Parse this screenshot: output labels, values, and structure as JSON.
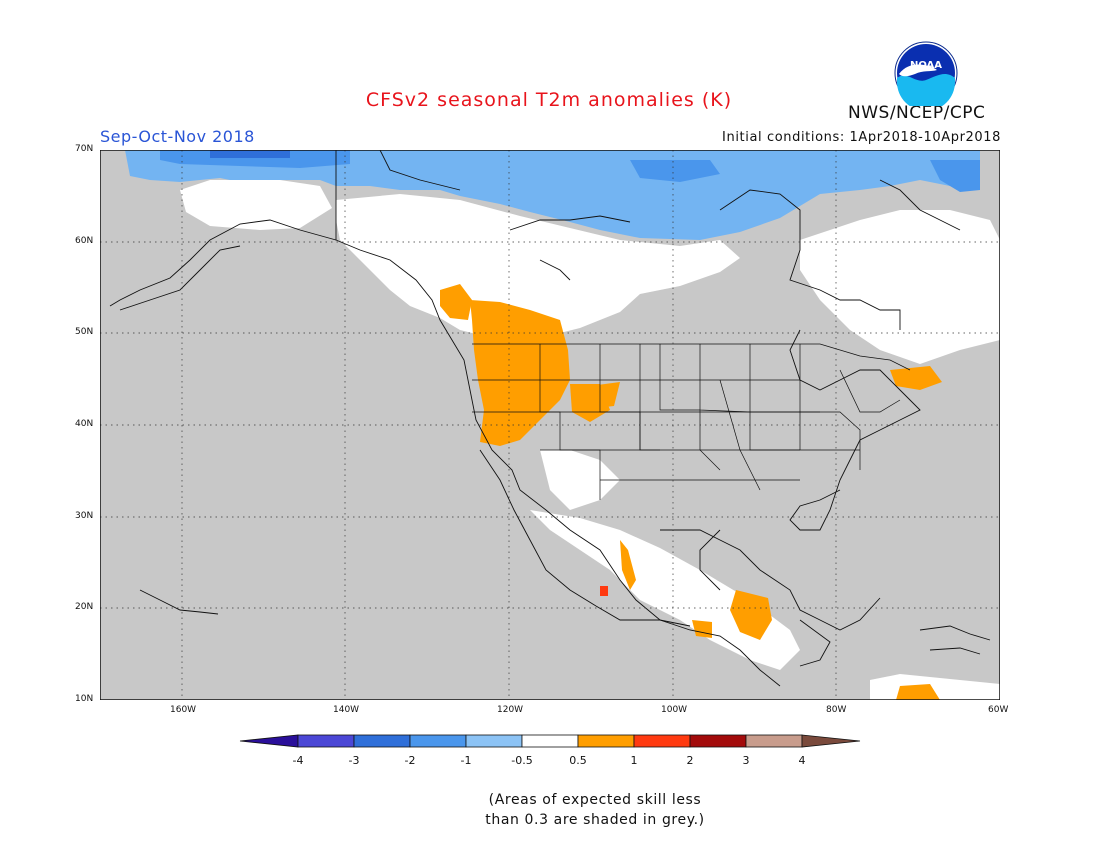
{
  "header": {
    "title": "CFSv2 seasonal T2m anomalies (K)",
    "season": "Sep-Oct-Nov 2018",
    "agency": "NWS/NCEP/CPC",
    "initial_conditions": "Initial conditions: 1Apr2018-10Apr2018",
    "logo_text": "NOAA"
  },
  "map": {
    "region": "North America",
    "projection": "lat-lon",
    "lon_range": [
      -171,
      -60
    ],
    "lat_range": [
      10,
      70
    ],
    "grid": "dotted",
    "x_ticks": [
      "160W",
      "140W",
      "120W",
      "100W",
      "80W",
      "60W"
    ],
    "y_ticks": [
      "70N",
      "60N",
      "50N",
      "40N",
      "30N",
      "20N",
      "10N"
    ],
    "colors": {
      "skill_mask_grey": "#c8c8c8",
      "near_normal_white": "#ffffff",
      "cold_light": "#73b4f2",
      "cold_mid": "#4a96ec",
      "cold_strong": "#2f6fd9",
      "warm_orange": "#ff9e00",
      "warm_red": "#ff3a10"
    },
    "shading_summary": "Blue (cold) anomalies across northern Alaska and Canadian Arctic; orange (warm) anomalies over Pacific Northwest, Great Basin, Four Corners, western Mexico, Central America and Nova Scotia; grey low-skill mask elsewhere."
  },
  "legend": {
    "labels": [
      "-4",
      "-3",
      "-2",
      "-1",
      "-0.5",
      "0.5",
      "1",
      "2",
      "3",
      "4"
    ],
    "colors": [
      "#2a0f9a",
      "#4b47d6",
      "#2f6fd9",
      "#4a96ec",
      "#8cc3f5",
      "#ffffff",
      "#ff9e00",
      "#ff3a10",
      "#a30b0b",
      "#c89c8c",
      "#7a4a3c"
    ]
  },
  "footnote": {
    "line1": "(Areas of expected skill less",
    "line2": "than 0.3 are shaded in grey.)"
  }
}
